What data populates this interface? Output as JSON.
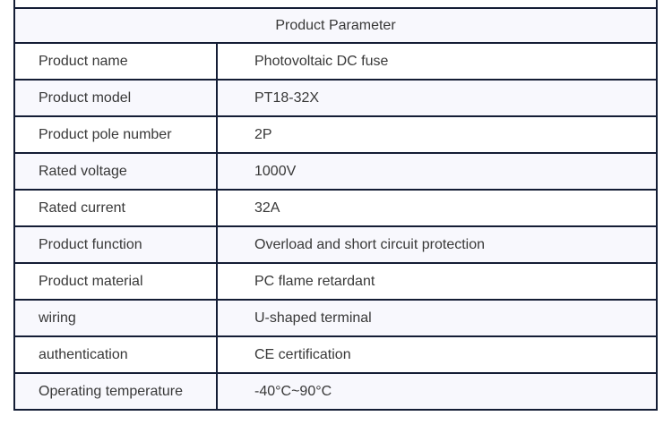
{
  "table": {
    "title": "Product Parameter",
    "rows": [
      {
        "label": "Product name",
        "value": "Photovoltaic DC fuse"
      },
      {
        "label": "Product model",
        "value": "PT18-32X"
      },
      {
        "label": "Product pole number",
        "value": "2P"
      },
      {
        "label": "Rated voltage",
        "value": "1000V"
      },
      {
        "label": "Rated current",
        "value": "32A"
      },
      {
        "label": "Product function",
        "value": "Overload and short circuit protection"
      },
      {
        "label": "Product material",
        "value": "PC flame retardant"
      },
      {
        "label": "wiring",
        "value": "U-shaped terminal"
      },
      {
        "label": "authentication",
        "value": "CE certification"
      },
      {
        "label": "Operating temperature",
        "value": "-40°C~90°C"
      }
    ],
    "colors": {
      "border": "#141d35",
      "row_bg": "#ffffff",
      "row_alt_bg": "#f8f8fd",
      "text": "#383838"
    }
  }
}
